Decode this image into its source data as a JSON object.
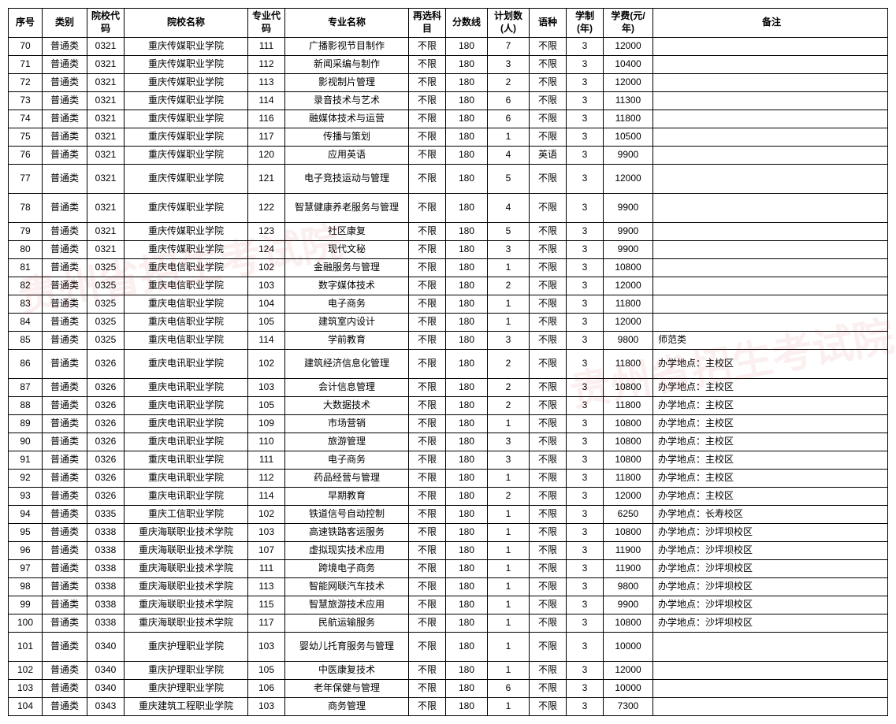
{
  "watermark_text": "贵州省招生考试院",
  "columns": [
    {
      "key": "seq",
      "label": "序号",
      "cls": "c-seq"
    },
    {
      "key": "cat",
      "label": "类别",
      "cls": "c-cat"
    },
    {
      "key": "scode",
      "label": "院校代码",
      "cls": "c-scode"
    },
    {
      "key": "sname",
      "label": "院校名称",
      "cls": "c-sname"
    },
    {
      "key": "mcode",
      "label": "专业代码",
      "cls": "c-mcode"
    },
    {
      "key": "mname",
      "label": "专业名称",
      "cls": "c-mname"
    },
    {
      "key": "resub",
      "label": "再选科目",
      "cls": "c-resub"
    },
    {
      "key": "score",
      "label": "分数线",
      "cls": "c-score"
    },
    {
      "key": "plan",
      "label": "计划数(人)",
      "cls": "c-plan"
    },
    {
      "key": "lang",
      "label": "语种",
      "cls": "c-lang"
    },
    {
      "key": "dur",
      "label": "学制(年)",
      "cls": "c-dur"
    },
    {
      "key": "fee",
      "label": "学费(元/年)",
      "cls": "c-fee"
    },
    {
      "key": "note",
      "label": "备注",
      "cls": "c-note"
    }
  ],
  "rows": [
    {
      "seq": "70",
      "cat": "普通类",
      "scode": "0321",
      "sname": "重庆传媒职业学院",
      "mcode": "111",
      "mname": "广播影视节目制作",
      "resub": "不限",
      "score": "180",
      "plan": "7",
      "lang": "不限",
      "dur": "3",
      "fee": "12000",
      "note": ""
    },
    {
      "seq": "71",
      "cat": "普通类",
      "scode": "0321",
      "sname": "重庆传媒职业学院",
      "mcode": "112",
      "mname": "新闻采编与制作",
      "resub": "不限",
      "score": "180",
      "plan": "3",
      "lang": "不限",
      "dur": "3",
      "fee": "10400",
      "note": ""
    },
    {
      "seq": "72",
      "cat": "普通类",
      "scode": "0321",
      "sname": "重庆传媒职业学院",
      "mcode": "113",
      "mname": "影视制片管理",
      "resub": "不限",
      "score": "180",
      "plan": "2",
      "lang": "不限",
      "dur": "3",
      "fee": "12000",
      "note": ""
    },
    {
      "seq": "73",
      "cat": "普通类",
      "scode": "0321",
      "sname": "重庆传媒职业学院",
      "mcode": "114",
      "mname": "录音技术与艺术",
      "resub": "不限",
      "score": "180",
      "plan": "6",
      "lang": "不限",
      "dur": "3",
      "fee": "11300",
      "note": ""
    },
    {
      "seq": "74",
      "cat": "普通类",
      "scode": "0321",
      "sname": "重庆传媒职业学院",
      "mcode": "116",
      "mname": "融媒体技术与运营",
      "resub": "不限",
      "score": "180",
      "plan": "6",
      "lang": "不限",
      "dur": "3",
      "fee": "11800",
      "note": ""
    },
    {
      "seq": "75",
      "cat": "普通类",
      "scode": "0321",
      "sname": "重庆传媒职业学院",
      "mcode": "117",
      "mname": "传播与策划",
      "resub": "不限",
      "score": "180",
      "plan": "1",
      "lang": "不限",
      "dur": "3",
      "fee": "10500",
      "note": ""
    },
    {
      "seq": "76",
      "cat": "普通类",
      "scode": "0321",
      "sname": "重庆传媒职业学院",
      "mcode": "120",
      "mname": "应用英语",
      "resub": "不限",
      "score": "180",
      "plan": "4",
      "lang": "英语",
      "dur": "3",
      "fee": "9900",
      "note": ""
    },
    {
      "seq": "77",
      "cat": "普通类",
      "scode": "0321",
      "sname": "重庆传媒职业学院",
      "mcode": "121",
      "mname": "电子竞技运动与管理",
      "resub": "不限",
      "score": "180",
      "plan": "5",
      "lang": "不限",
      "dur": "3",
      "fee": "12000",
      "note": "",
      "tall": true
    },
    {
      "seq": "78",
      "cat": "普通类",
      "scode": "0321",
      "sname": "重庆传媒职业学院",
      "mcode": "122",
      "mname": "智慧健康养老服务与管理",
      "resub": "不限",
      "score": "180",
      "plan": "4",
      "lang": "不限",
      "dur": "3",
      "fee": "9900",
      "note": "",
      "tall": true
    },
    {
      "seq": "79",
      "cat": "普通类",
      "scode": "0321",
      "sname": "重庆传媒职业学院",
      "mcode": "123",
      "mname": "社区康复",
      "resub": "不限",
      "score": "180",
      "plan": "5",
      "lang": "不限",
      "dur": "3",
      "fee": "9900",
      "note": ""
    },
    {
      "seq": "80",
      "cat": "普通类",
      "scode": "0321",
      "sname": "重庆传媒职业学院",
      "mcode": "124",
      "mname": "现代文秘",
      "resub": "不限",
      "score": "180",
      "plan": "3",
      "lang": "不限",
      "dur": "3",
      "fee": "9900",
      "note": ""
    },
    {
      "seq": "81",
      "cat": "普通类",
      "scode": "0325",
      "sname": "重庆电信职业学院",
      "mcode": "102",
      "mname": "金融服务与管理",
      "resub": "不限",
      "score": "180",
      "plan": "1",
      "lang": "不限",
      "dur": "3",
      "fee": "10800",
      "note": ""
    },
    {
      "seq": "82",
      "cat": "普通类",
      "scode": "0325",
      "sname": "重庆电信职业学院",
      "mcode": "103",
      "mname": "数字媒体技术",
      "resub": "不限",
      "score": "180",
      "plan": "2",
      "lang": "不限",
      "dur": "3",
      "fee": "12000",
      "note": ""
    },
    {
      "seq": "83",
      "cat": "普通类",
      "scode": "0325",
      "sname": "重庆电信职业学院",
      "mcode": "104",
      "mname": "电子商务",
      "resub": "不限",
      "score": "180",
      "plan": "1",
      "lang": "不限",
      "dur": "3",
      "fee": "11800",
      "note": ""
    },
    {
      "seq": "84",
      "cat": "普通类",
      "scode": "0325",
      "sname": "重庆电信职业学院",
      "mcode": "105",
      "mname": "建筑室内设计",
      "resub": "不限",
      "score": "180",
      "plan": "1",
      "lang": "不限",
      "dur": "3",
      "fee": "12000",
      "note": ""
    },
    {
      "seq": "85",
      "cat": "普通类",
      "scode": "0325",
      "sname": "重庆电信职业学院",
      "mcode": "114",
      "mname": "学前教育",
      "resub": "不限",
      "score": "180",
      "plan": "3",
      "lang": "不限",
      "dur": "3",
      "fee": "9800",
      "note": "师范类"
    },
    {
      "seq": "86",
      "cat": "普通类",
      "scode": "0326",
      "sname": "重庆电讯职业学院",
      "mcode": "102",
      "mname": "建筑经济信息化管理",
      "resub": "不限",
      "score": "180",
      "plan": "2",
      "lang": "不限",
      "dur": "3",
      "fee": "11800",
      "note": "办学地点：主校区",
      "tall": true
    },
    {
      "seq": "87",
      "cat": "普通类",
      "scode": "0326",
      "sname": "重庆电讯职业学院",
      "mcode": "103",
      "mname": "会计信息管理",
      "resub": "不限",
      "score": "180",
      "plan": "2",
      "lang": "不限",
      "dur": "3",
      "fee": "10800",
      "note": "办学地点：主校区"
    },
    {
      "seq": "88",
      "cat": "普通类",
      "scode": "0326",
      "sname": "重庆电讯职业学院",
      "mcode": "105",
      "mname": "大数据技术",
      "resub": "不限",
      "score": "180",
      "plan": "2",
      "lang": "不限",
      "dur": "3",
      "fee": "11800",
      "note": "办学地点：主校区"
    },
    {
      "seq": "89",
      "cat": "普通类",
      "scode": "0326",
      "sname": "重庆电讯职业学院",
      "mcode": "109",
      "mname": "市场营销",
      "resub": "不限",
      "score": "180",
      "plan": "1",
      "lang": "不限",
      "dur": "3",
      "fee": "10800",
      "note": "办学地点：主校区"
    },
    {
      "seq": "90",
      "cat": "普通类",
      "scode": "0326",
      "sname": "重庆电讯职业学院",
      "mcode": "110",
      "mname": "旅游管理",
      "resub": "不限",
      "score": "180",
      "plan": "3",
      "lang": "不限",
      "dur": "3",
      "fee": "10800",
      "note": "办学地点：主校区"
    },
    {
      "seq": "91",
      "cat": "普通类",
      "scode": "0326",
      "sname": "重庆电讯职业学院",
      "mcode": "111",
      "mname": "电子商务",
      "resub": "不限",
      "score": "180",
      "plan": "3",
      "lang": "不限",
      "dur": "3",
      "fee": "10800",
      "note": "办学地点：主校区"
    },
    {
      "seq": "92",
      "cat": "普通类",
      "scode": "0326",
      "sname": "重庆电讯职业学院",
      "mcode": "112",
      "mname": "药品经营与管理",
      "resub": "不限",
      "score": "180",
      "plan": "1",
      "lang": "不限",
      "dur": "3",
      "fee": "11800",
      "note": "办学地点：主校区"
    },
    {
      "seq": "93",
      "cat": "普通类",
      "scode": "0326",
      "sname": "重庆电讯职业学院",
      "mcode": "114",
      "mname": "早期教育",
      "resub": "不限",
      "score": "180",
      "plan": "2",
      "lang": "不限",
      "dur": "3",
      "fee": "12000",
      "note": "办学地点：主校区"
    },
    {
      "seq": "94",
      "cat": "普通类",
      "scode": "0335",
      "sname": "重庆工信职业学院",
      "mcode": "102",
      "mname": "铁道信号自动控制",
      "resub": "不限",
      "score": "180",
      "plan": "1",
      "lang": "不限",
      "dur": "3",
      "fee": "6250",
      "note": "办学地点：长寿校区"
    },
    {
      "seq": "95",
      "cat": "普通类",
      "scode": "0338",
      "sname": "重庆海联职业技术学院",
      "mcode": "103",
      "mname": "高速铁路客运服务",
      "resub": "不限",
      "score": "180",
      "plan": "1",
      "lang": "不限",
      "dur": "3",
      "fee": "10800",
      "note": "办学地点：沙坪坝校区"
    },
    {
      "seq": "96",
      "cat": "普通类",
      "scode": "0338",
      "sname": "重庆海联职业技术学院",
      "mcode": "107",
      "mname": "虚拟现实技术应用",
      "resub": "不限",
      "score": "180",
      "plan": "1",
      "lang": "不限",
      "dur": "3",
      "fee": "11900",
      "note": "办学地点：沙坪坝校区"
    },
    {
      "seq": "97",
      "cat": "普通类",
      "scode": "0338",
      "sname": "重庆海联职业技术学院",
      "mcode": "111",
      "mname": "跨境电子商务",
      "resub": "不限",
      "score": "180",
      "plan": "1",
      "lang": "不限",
      "dur": "3",
      "fee": "11900",
      "note": "办学地点：沙坪坝校区"
    },
    {
      "seq": "98",
      "cat": "普通类",
      "scode": "0338",
      "sname": "重庆海联职业技术学院",
      "mcode": "113",
      "mname": "智能网联汽车技术",
      "resub": "不限",
      "score": "180",
      "plan": "1",
      "lang": "不限",
      "dur": "3",
      "fee": "9800",
      "note": "办学地点：沙坪坝校区"
    },
    {
      "seq": "99",
      "cat": "普通类",
      "scode": "0338",
      "sname": "重庆海联职业技术学院",
      "mcode": "115",
      "mname": "智慧旅游技术应用",
      "resub": "不限",
      "score": "180",
      "plan": "1",
      "lang": "不限",
      "dur": "3",
      "fee": "9900",
      "note": "办学地点：沙坪坝校区"
    },
    {
      "seq": "100",
      "cat": "普通类",
      "scode": "0338",
      "sname": "重庆海联职业技术学院",
      "mcode": "117",
      "mname": "民航运输服务",
      "resub": "不限",
      "score": "180",
      "plan": "1",
      "lang": "不限",
      "dur": "3",
      "fee": "10800",
      "note": "办学地点：沙坪坝校区"
    },
    {
      "seq": "101",
      "cat": "普通类",
      "scode": "0340",
      "sname": "重庆护理职业学院",
      "mcode": "103",
      "mname": "婴幼儿托育服务与管理",
      "resub": "不限",
      "score": "180",
      "plan": "1",
      "lang": "不限",
      "dur": "3",
      "fee": "10000",
      "note": "",
      "tall": true
    },
    {
      "seq": "102",
      "cat": "普通类",
      "scode": "0340",
      "sname": "重庆护理职业学院",
      "mcode": "105",
      "mname": "中医康复技术",
      "resub": "不限",
      "score": "180",
      "plan": "1",
      "lang": "不限",
      "dur": "3",
      "fee": "12000",
      "note": ""
    },
    {
      "seq": "103",
      "cat": "普通类",
      "scode": "0340",
      "sname": "重庆护理职业学院",
      "mcode": "106",
      "mname": "老年保健与管理",
      "resub": "不限",
      "score": "180",
      "plan": "6",
      "lang": "不限",
      "dur": "3",
      "fee": "10000",
      "note": ""
    },
    {
      "seq": "104",
      "cat": "普通类",
      "scode": "0343",
      "sname": "重庆建筑工程职业学院",
      "mcode": "103",
      "mname": "商务管理",
      "resub": "不限",
      "score": "180",
      "plan": "1",
      "lang": "不限",
      "dur": "3",
      "fee": "7300",
      "note": ""
    }
  ]
}
